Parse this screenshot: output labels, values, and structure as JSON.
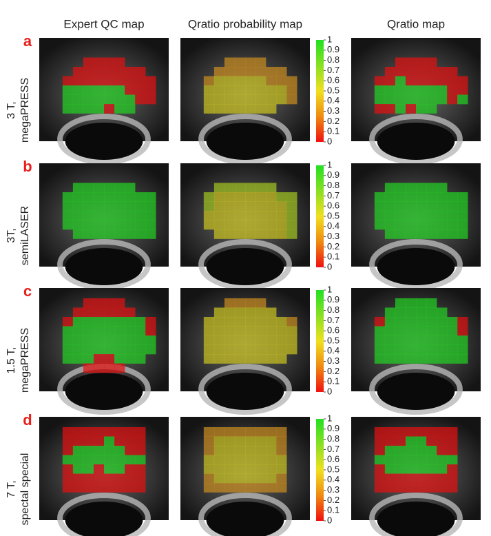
{
  "columns": [
    "Expert QC map",
    "Qratio probability map",
    "Qratio map"
  ],
  "rows": [
    {
      "label": "a",
      "lines": [
        "3 T,",
        "megaPRESS"
      ]
    },
    {
      "label": "b",
      "lines": [
        "3T,",
        "semiLASER"
      ]
    },
    {
      "label": "c",
      "lines": [
        "1.5 T,",
        "megaPRESS"
      ]
    },
    {
      "label": "d",
      "lines": [
        "7 T,",
        "spectal special"
      ]
    }
  ],
  "colorbar_ticks": [
    1,
    0.9,
    0.8,
    0.7,
    0.6,
    0.5,
    0.4,
    0.3,
    0.2,
    0.1,
    0
  ]
}
